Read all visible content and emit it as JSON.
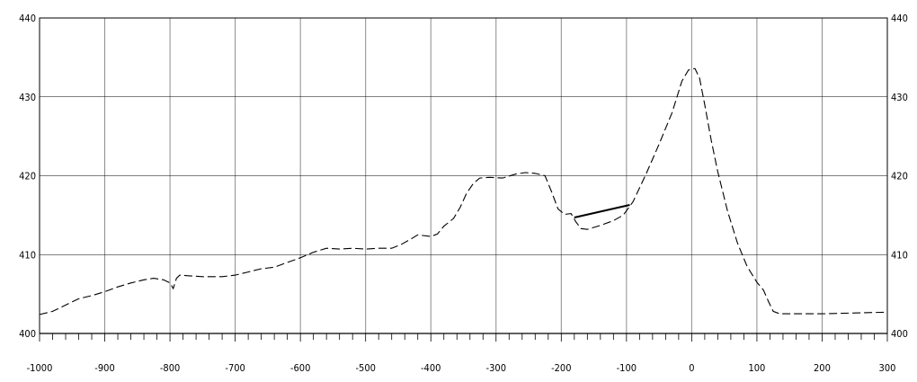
{
  "chart_data": {
    "type": "line",
    "title": "",
    "xlabel": "",
    "ylabel": "",
    "xlim": [
      -1000,
      300
    ],
    "ylim": [
      400,
      440
    ],
    "x_ticks": [
      -1000,
      -900,
      -800,
      -700,
      -600,
      -500,
      -400,
      -300,
      -200,
      -100,
      0,
      100,
      200,
      300
    ],
    "y_ticks": [
      400,
      410,
      420,
      430,
      440
    ],
    "y_ticks_on_both_sides": true,
    "grid": true,
    "minor_x_tick_step": 20,
    "series": [
      {
        "style": "dashed",
        "points": [
          [
            -1000,
            402.4
          ],
          [
            -980,
            402.8
          ],
          [
            -960,
            403.6
          ],
          [
            -940,
            404.4
          ],
          [
            -920,
            404.8
          ],
          [
            -900,
            405.3
          ],
          [
            -880,
            405.9
          ],
          [
            -860,
            406.4
          ],
          [
            -840,
            406.8
          ],
          [
            -825,
            407.0
          ],
          [
            -810,
            406.8
          ],
          [
            -800,
            406.4
          ],
          [
            -795,
            405.7
          ],
          [
            -790,
            407.0
          ],
          [
            -785,
            407.4
          ],
          [
            -770,
            407.3
          ],
          [
            -750,
            407.2
          ],
          [
            -720,
            407.2
          ],
          [
            -700,
            407.4
          ],
          [
            -680,
            407.8
          ],
          [
            -660,
            408.2
          ],
          [
            -640,
            408.4
          ],
          [
            -620,
            409.0
          ],
          [
            -600,
            409.6
          ],
          [
            -580,
            410.3
          ],
          [
            -560,
            410.8
          ],
          [
            -540,
            410.7
          ],
          [
            -520,
            410.8
          ],
          [
            -500,
            410.7
          ],
          [
            -480,
            410.8
          ],
          [
            -460,
            410.8
          ],
          [
            -445,
            411.3
          ],
          [
            -430,
            412.0
          ],
          [
            -420,
            412.5
          ],
          [
            -400,
            412.3
          ],
          [
            -390,
            412.6
          ],
          [
            -380,
            413.6
          ],
          [
            -365,
            414.6
          ],
          [
            -355,
            416.0
          ],
          [
            -345,
            417.8
          ],
          [
            -335,
            419.0
          ],
          [
            -325,
            419.7
          ],
          [
            -310,
            419.8
          ],
          [
            -290,
            419.7
          ],
          [
            -270,
            420.2
          ],
          [
            -255,
            420.4
          ],
          [
            -240,
            420.3
          ],
          [
            -225,
            420.0
          ],
          [
            -215,
            418.0
          ],
          [
            -205,
            415.8
          ],
          [
            -195,
            415.1
          ],
          [
            -185,
            415.2
          ],
          [
            -178,
            414.2
          ],
          [
            -170,
            413.3
          ],
          [
            -160,
            413.2
          ],
          [
            -140,
            413.7
          ],
          [
            -120,
            414.3
          ],
          [
            -105,
            415.0
          ],
          [
            -90,
            416.7
          ],
          [
            -70,
            420.2
          ],
          [
            -50,
            424.0
          ],
          [
            -30,
            428.0
          ],
          [
            -15,
            432.0
          ],
          [
            -5,
            433.4
          ],
          [
            5,
            433.6
          ],
          [
            12,
            432.4
          ],
          [
            20,
            429.0
          ],
          [
            30,
            424.5
          ],
          [
            40,
            420.5
          ],
          [
            55,
            415.5
          ],
          [
            70,
            411.5
          ],
          [
            85,
            408.5
          ],
          [
            100,
            406.5
          ],
          [
            110,
            405.5
          ],
          [
            118,
            404.0
          ],
          [
            125,
            402.8
          ],
          [
            135,
            402.5
          ],
          [
            200,
            402.5
          ],
          [
            250,
            402.6
          ],
          [
            300,
            402.7
          ]
        ]
      },
      {
        "style": "solid",
        "points": [
          [
            -180,
            414.7
          ],
          [
            -95,
            416.3
          ]
        ]
      }
    ]
  }
}
